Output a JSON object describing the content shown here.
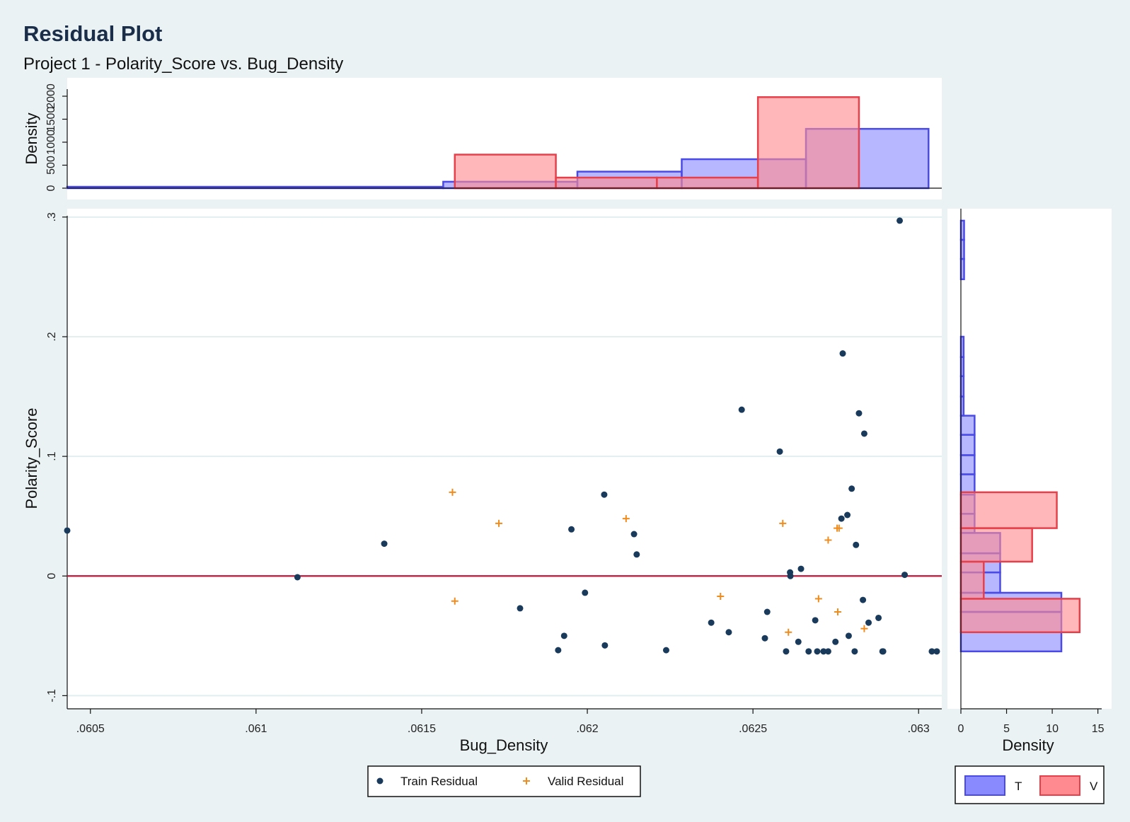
{
  "title": "Residual Plot",
  "subtitle": "Project 1 - Polarity_Score vs. Bug_Density",
  "colors": {
    "background": "#eaf2f3",
    "plot_bg": "#ffffff",
    "grid": "#e3eeee",
    "train": "#1a3a5c",
    "valid": "#f08c1e",
    "zero_line": "#c0173a",
    "hist_T_fill": "#8a8aff",
    "hist_T_edge": "#4a4ae8",
    "hist_V_fill": "#ff8a8f",
    "hist_V_edge": "#e8404a"
  },
  "chart_data": [
    {
      "type": "scatter",
      "xlabel": "Bug_Density",
      "ylabel": "Polarity_Score",
      "xlim": [
        0.06043,
        0.06307
      ],
      "ylim": [
        -0.111,
        0.307
      ],
      "xticks": [
        0.0605,
        0.061,
        0.0615,
        0.062,
        0.0625,
        0.063
      ],
      "xtick_labels": [
        ".0605",
        ".061",
        ".0615",
        ".062",
        ".0625",
        ".063"
      ],
      "yticks": [
        -0.1,
        0,
        0.1,
        0.2,
        0.3
      ],
      "ytick_labels": [
        "-.1",
        "0",
        ".1",
        ".2",
        ".3"
      ],
      "grid": true,
      "reference_line_y": 0,
      "legend": [
        "Train Residual",
        "Valid Residual"
      ],
      "legend_position": "bottom",
      "series": [
        {
          "name": "Train Residual",
          "marker": "circle",
          "points": [
            [
              0.06043,
              0.038
            ],
            [
              0.061125,
              -0.001
            ],
            [
              0.061387,
              0.027
            ],
            [
              0.061797,
              -0.027
            ],
            [
              0.061912,
              -0.062
            ],
            [
              0.06193,
              -0.05
            ],
            [
              0.061952,
              0.039
            ],
            [
              0.061993,
              -0.014
            ],
            [
              0.062051,
              0.068
            ],
            [
              0.062053,
              -0.058
            ],
            [
              0.062141,
              0.035
            ],
            [
              0.062149,
              0.018
            ],
            [
              0.062238,
              -0.062
            ],
            [
              0.062374,
              -0.039
            ],
            [
              0.062427,
              -0.047
            ],
            [
              0.062466,
              0.139
            ],
            [
              0.062536,
              -0.052
            ],
            [
              0.062543,
              -0.03
            ],
            [
              0.062581,
              0.104
            ],
            [
              0.0626,
              -0.063
            ],
            [
              0.062612,
              0.003
            ],
            [
              0.062613,
              0.0
            ],
            [
              0.062637,
              -0.055
            ],
            [
              0.062645,
              0.006
            ],
            [
              0.062668,
              -0.063
            ],
            [
              0.062688,
              -0.037
            ],
            [
              0.062694,
              -0.063
            ],
            [
              0.062713,
              -0.063
            ],
            [
              0.062727,
              -0.063
            ],
            [
              0.062749,
              -0.055
            ],
            [
              0.062767,
              0.048
            ],
            [
              0.062771,
              0.186
            ],
            [
              0.062785,
              0.051
            ],
            [
              0.062789,
              -0.05
            ],
            [
              0.062798,
              0.073
            ],
            [
              0.062807,
              -0.063
            ],
            [
              0.062811,
              0.026
            ],
            [
              0.06282,
              0.136
            ],
            [
              0.062832,
              -0.02
            ],
            [
              0.062836,
              0.119
            ],
            [
              0.062849,
              -0.039
            ],
            [
              0.062879,
              -0.035
            ],
            [
              0.062891,
              -0.063
            ],
            [
              0.062893,
              -0.063
            ],
            [
              0.062943,
              0.297
            ],
            [
              0.062958,
              0.001
            ],
            [
              0.06304,
              -0.063
            ],
            [
              0.063055,
              -0.063
            ]
          ]
        },
        {
          "name": "Valid Residual",
          "marker": "plus",
          "points": [
            [
              0.061593,
              0.07
            ],
            [
              0.0616,
              -0.021
            ],
            [
              0.061733,
              0.044
            ],
            [
              0.062117,
              0.048
            ],
            [
              0.062402,
              -0.017
            ],
            [
              0.06259,
              0.044
            ],
            [
              0.062607,
              -0.047
            ],
            [
              0.062698,
              -0.019
            ],
            [
              0.062727,
              0.03
            ],
            [
              0.062754,
              0.04
            ],
            [
              0.06276,
              0.04
            ],
            [
              0.062756,
              -0.03
            ],
            [
              0.062836,
              -0.044
            ]
          ]
        }
      ]
    },
    {
      "type": "bar",
      "orientation": "vertical",
      "ylabel": "Density",
      "ylim": [
        0,
        2400
      ],
      "yticks": [
        0,
        500,
        1000,
        1500,
        2000
      ],
      "ytick_labels": [
        "0",
        "500",
        "1000",
        "1500",
        "2000"
      ],
      "series": [
        {
          "name": "T",
          "bins": [
            [
              0.06043,
              0.061565,
              30
            ],
            [
              0.061565,
              0.06197,
              140
            ],
            [
              0.06197,
              0.062285,
              360
            ],
            [
              0.062285,
              0.06266,
              630
            ],
            [
              0.06266,
              0.06303,
              1290
            ]
          ]
        },
        {
          "name": "V",
          "bins": [
            [
              0.0616,
              0.061905,
              730
            ],
            [
              0.061905,
              0.06221,
              230
            ],
            [
              0.06221,
              0.062515,
              230
            ],
            [
              0.062515,
              0.06282,
              1980
            ]
          ]
        }
      ]
    },
    {
      "type": "bar",
      "orientation": "horizontal",
      "xlabel": "Density",
      "xlim": [
        0,
        16.5
      ],
      "xticks": [
        0,
        5,
        10,
        15
      ],
      "xtick_labels": [
        "0",
        "5",
        "10",
        "15"
      ],
      "legend": [
        "T",
        "V"
      ],
      "legend_position": "bottom",
      "series": [
        {
          "name": "T",
          "bins": [
            [
              -0.063,
              -0.047,
              11
            ],
            [
              -0.047,
              -0.03,
              11
            ],
            [
              -0.03,
              -0.014,
              11
            ],
            [
              -0.014,
              0.003,
              4.3
            ],
            [
              0.003,
              0.019,
              4.3
            ],
            [
              0.019,
              0.036,
              4.3
            ],
            [
              0.036,
              0.052,
              1.5
            ],
            [
              0.052,
              0.068,
              1.5
            ],
            [
              0.068,
              0.085,
              1.5
            ],
            [
              0.085,
              0.101,
              1.5
            ],
            [
              0.101,
              0.118,
              1.5
            ],
            [
              0.118,
              0.134,
              1.5
            ],
            [
              0.134,
              0.15,
              0.3
            ],
            [
              0.15,
              0.167,
              0.3
            ],
            [
              0.167,
              0.183,
              0.3
            ],
            [
              0.183,
              0.2,
              0.3
            ],
            [
              0.248,
              0.265,
              0.35
            ],
            [
              0.265,
              0.281,
              0.35
            ],
            [
              0.281,
              0.297,
              0.35
            ]
          ]
        },
        {
          "name": "V",
          "bins": [
            [
              -0.047,
              -0.019,
              13
            ],
            [
              -0.019,
              0.012,
              2.5
            ],
            [
              0.012,
              0.04,
              7.8
            ],
            [
              0.04,
              0.07,
              10.5
            ]
          ]
        }
      ]
    }
  ]
}
